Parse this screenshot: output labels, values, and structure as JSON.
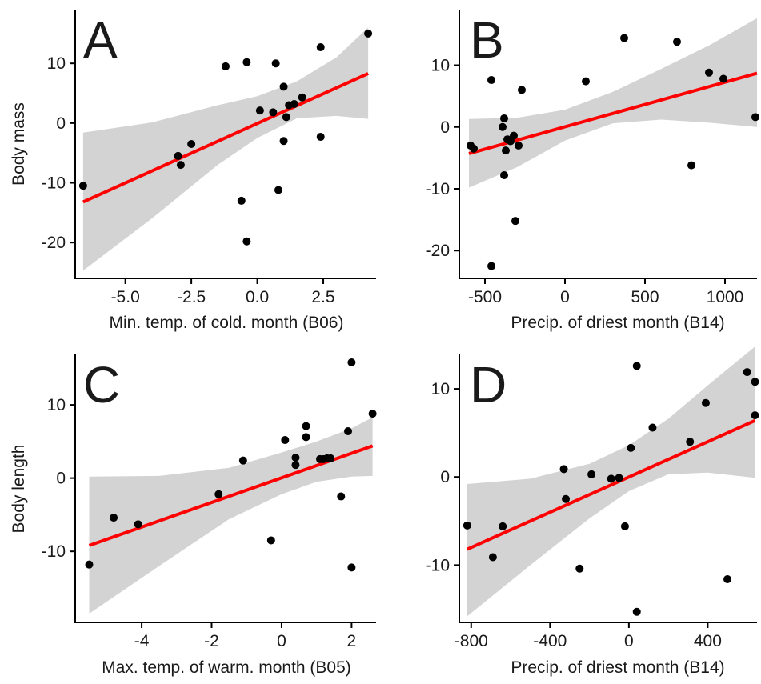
{
  "chart_data": [
    {
      "type": "scatter",
      "panel": "A",
      "xlabel": "Min. temp. of cold. month (B06)",
      "ylabel": "Body mass",
      "xlim": [
        -6.9,
        4.5
      ],
      "ylim": [
        -26,
        19
      ],
      "xticks": [
        -5.0,
        -2.5,
        0.0,
        2.5
      ],
      "xtick_labels": [
        "-5.0",
        "-2.5",
        "0.0",
        "2.5"
      ],
      "yticks": [
        -20,
        -10,
        0,
        10
      ],
      "ytick_labels": [
        "-20",
        "-10",
        "0",
        "10"
      ],
      "x": [
        -6.6,
        -3.0,
        -2.9,
        -2.5,
        -1.2,
        -0.6,
        -0.4,
        -0.4,
        0.1,
        0.6,
        0.7,
        0.8,
        1.0,
        1.0,
        1.1,
        1.2,
        1.4,
        1.7,
        2.4,
        2.4,
        4.2
      ],
      "y": [
        -10.5,
        -5.5,
        -7.0,
        -3.5,
        9.5,
        -13.0,
        -19.8,
        10.2,
        2.1,
        1.8,
        10.0,
        -11.2,
        6.1,
        -3.0,
        1.0,
        3.0,
        3.2,
        4.3,
        -2.3,
        12.7,
        15.0
      ],
      "fit": {
        "x": [
          -6.6,
          4.2
        ],
        "y": [
          -13.2,
          8.3
        ]
      },
      "band_x": [
        -6.6,
        -4.0,
        -1.5,
        0.0,
        1.5,
        3.0,
        4.2
      ],
      "band_lower": [
        -24.7,
        -16.0,
        -7.0,
        -2.5,
        0.8,
        1.2,
        0.7
      ],
      "band_upper": [
        -1.6,
        0.1,
        3.0,
        4.5,
        7.0,
        11.0,
        16.0
      ]
    },
    {
      "type": "scatter",
      "panel": "B",
      "xlabel": "Precip. of driest month (B14)",
      "ylabel": "",
      "xlim": [
        -660,
        1200
      ],
      "ylim": [
        -24.5,
        19
      ],
      "xticks": [
        -500,
        0,
        500,
        1000
      ],
      "xtick_labels": [
        "-500",
        "0",
        "500",
        "1000"
      ],
      "yticks": [
        -20,
        -10,
        0,
        10
      ],
      "ytick_labels": [
        "-20",
        "-10",
        "0",
        "10"
      ],
      "x": [
        -590,
        -570,
        -460,
        -460,
        -390,
        -380,
        -380,
        -370,
        -360,
        -340,
        -320,
        -310,
        -290,
        -270,
        130,
        370,
        700,
        790,
        900,
        990,
        1190
      ],
      "y": [
        -3.0,
        -3.5,
        7.6,
        -22.5,
        0.0,
        1.4,
        -7.8,
        -3.8,
        -2.0,
        -2.3,
        -1.4,
        -15.2,
        -3.0,
        6.0,
        7.4,
        14.4,
        13.8,
        -6.2,
        8.8,
        7.8,
        1.6
      ],
      "fit": {
        "x": [
          -600,
          1200
        ],
        "y": [
          -4.3,
          8.7
        ]
      },
      "band_x": [
        -600,
        -300,
        0,
        300,
        600,
        900,
        1200
      ],
      "band_lower": [
        -9.8,
        -6.5,
        -2.2,
        0.6,
        1.2,
        0.7,
        0.0
      ],
      "band_upper": [
        1.3,
        1.5,
        2.8,
        5.7,
        9.4,
        13.2,
        17.6
      ]
    },
    {
      "type": "scatter",
      "panel": "C",
      "xlabel": "Max. temp. of warm. month (B05)",
      "ylabel": "Body length",
      "xlim": [
        -5.9,
        2.7
      ],
      "ylim": [
        -19.7,
        17
      ],
      "xticks": [
        -4,
        -2,
        0,
        2
      ],
      "xtick_labels": [
        "-4",
        "-2",
        "0",
        "2"
      ],
      "yticks": [
        -10,
        0,
        10
      ],
      "ytick_labels": [
        "-10",
        "0",
        "10"
      ],
      "x": [
        -5.5,
        -4.8,
        -4.1,
        -1.8,
        -1.1,
        -0.3,
        0.1,
        0.4,
        0.4,
        0.7,
        0.7,
        1.1,
        1.2,
        1.3,
        1.4,
        1.7,
        1.9,
        2.0,
        2.0,
        2.6
      ],
      "y": [
        -11.8,
        -5.4,
        -6.3,
        -2.2,
        2.4,
        -8.5,
        5.2,
        1.8,
        2.8,
        7.1,
        5.6,
        2.6,
        2.6,
        2.7,
        2.7,
        -2.5,
        6.4,
        -12.2,
        15.8,
        8.8
      ],
      "fit": {
        "x": [
          -5.5,
          2.6
        ],
        "y": [
          -9.2,
          4.4
        ]
      },
      "band_x": [
        -5.5,
        -3.5,
        -1.5,
        0.0,
        1.0,
        2.0,
        2.6
      ],
      "band_lower": [
        -18.5,
        -12.0,
        -5.6,
        -2.2,
        -0.5,
        0.2,
        0.3
      ],
      "band_upper": [
        0.2,
        0.3,
        1.4,
        3.5,
        5.0,
        6.8,
        8.3
      ]
    },
    {
      "type": "scatter",
      "panel": "D",
      "xlabel": "Precip. of driest month (B14)",
      "ylabel": "",
      "xlim": [
        -860,
        650
      ],
      "ylim": [
        -16.5,
        14
      ],
      "xticks": [
        -800,
        -400,
        0,
        400
      ],
      "xtick_labels": [
        "-800",
        "-400",
        "0",
        "400"
      ],
      "yticks": [
        -10,
        0,
        10
      ],
      "ytick_labels": [
        "-10",
        "0",
        "10"
      ],
      "x": [
        -820,
        -690,
        -640,
        -330,
        -320,
        -250,
        -190,
        -90,
        -50,
        -20,
        10,
        40,
        40,
        120,
        310,
        390,
        500,
        600,
        640,
        640
      ],
      "y": [
        -5.5,
        -9.1,
        -5.6,
        0.9,
        -2.5,
        -10.4,
        0.3,
        -0.2,
        -0.1,
        -5.6,
        3.3,
        12.6,
        -15.3,
        5.6,
        4.0,
        8.4,
        -11.6,
        11.9,
        10.8,
        7.0
      ],
      "fit": {
        "x": [
          -820,
          640
        ],
        "y": [
          -8.2,
          6.4
        ]
      },
      "band_x": [
        -820,
        -500,
        -200,
        0,
        200,
        400,
        640
      ],
      "band_lower": [
        -15.8,
        -10.0,
        -4.7,
        -1.6,
        0.3,
        0.5,
        -0.1
      ],
      "band_upper": [
        -0.8,
        -0.2,
        1.5,
        3.6,
        6.6,
        10.4,
        14.8
      ]
    }
  ]
}
